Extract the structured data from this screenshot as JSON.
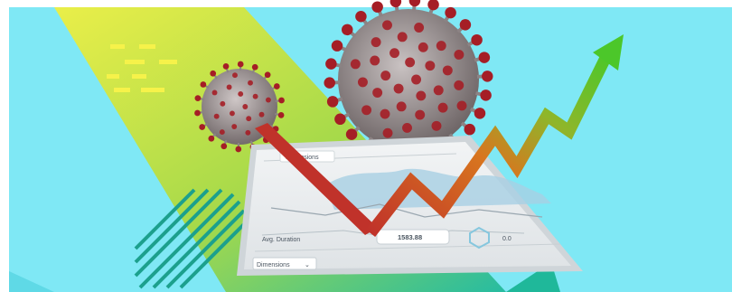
{
  "illustration": {
    "colors": {
      "sky": "#7fe8f5",
      "beam_light": "#f0ec3a",
      "beam_dark": "#1fb89a",
      "virus_body": "#9a8f90",
      "virus_spike": "#a51e26",
      "arrow_red": "#c0322a",
      "arrow_green": "#4cc72a",
      "stripes": "#1ca08d"
    },
    "icons": [
      "virus-icon",
      "trend-arrow-icon",
      "tablet-icon"
    ],
    "tablet": {
      "labels": {
        "top_tab": "Dimensions",
        "left_label": "Avg. Duration",
        "value": "1583.88",
        "right_value": "0.0",
        "dropdown": "Dimensions"
      }
    }
  }
}
